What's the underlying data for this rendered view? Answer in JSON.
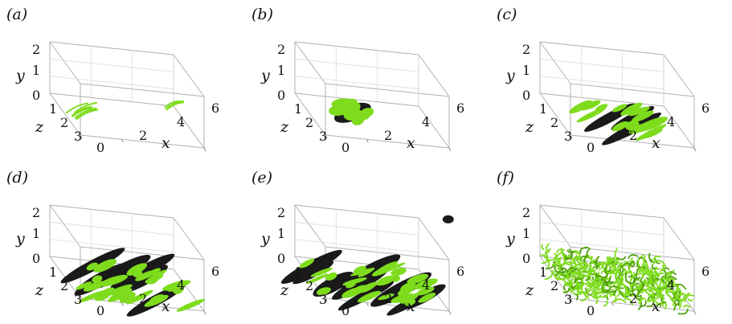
{
  "panels": [
    {
      "label": "(a)",
      "density": "sparse-small"
    },
    {
      "label": "(b)",
      "density": "blob"
    },
    {
      "label": "(c)",
      "density": "streaks"
    },
    {
      "label": "(d)",
      "density": "dense-streaks"
    },
    {
      "label": "(e)",
      "density": "full-streaks"
    },
    {
      "label": "(f)",
      "density": "turbulent"
    }
  ],
  "axes": {
    "y_label": "y",
    "z_label": "z",
    "x_label": "x",
    "y_ticks": [
      "0",
      "1",
      "2"
    ],
    "z_ticks": [
      "1",
      "2",
      "3"
    ],
    "x_ticks": [
      "0",
      "2",
      "4",
      "6"
    ]
  },
  "colors": {
    "surface_green": "#7edc1d",
    "surface_green_dark": "#4fa10a",
    "structure_black": "#1a1a1a",
    "box_line": "#b0b0b0",
    "grid_line": "#dcdcdc"
  }
}
